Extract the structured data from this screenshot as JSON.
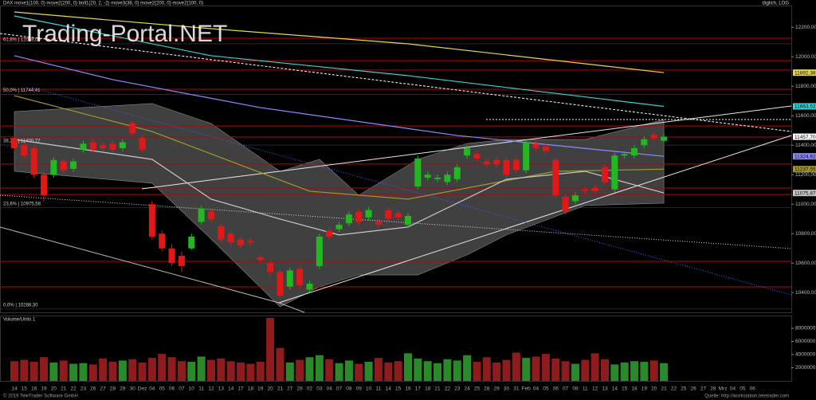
{
  "chart_data": {
    "type": "candlestick",
    "watermark": "Trading-Portal.NET",
    "header": "DAX  move1(100, 0)  move2(200, 0)  boll1(20, 2, -2)  move3(38, 0)  move2(200, 0)  move2(100, 0)",
    "period_label": "täglich, LOG",
    "categories": [
      "14",
      "15",
      "16",
      "19",
      "20",
      "21",
      "22",
      "23",
      "26",
      "27",
      "28",
      "29",
      "30",
      "Dez",
      "04",
      "05",
      "06",
      "07",
      "10",
      "11",
      "12",
      "13",
      "14",
      "17",
      "18",
      "19",
      "20",
      "21",
      "27",
      "28",
      "02",
      "03",
      "04",
      "07",
      "08",
      "09",
      "10",
      "11",
      "14",
      "15",
      "16",
      "17",
      "18",
      "21",
      "22",
      "23",
      "24",
      "25",
      "28",
      "29",
      "30",
      "31",
      "Feb",
      "04",
      "05",
      "06",
      "07",
      "08",
      "11",
      "12",
      "13",
      "14",
      "15",
      "18",
      "19",
      "20",
      "21",
      "22",
      "25",
      "26",
      "27",
      "28",
      "Mrz",
      "04",
      "05",
      "06"
    ],
    "open": [
      11450,
      11400,
      11380,
      11200,
      11200,
      11290,
      11240,
      11370,
      11420,
      11400,
      11410,
      11380,
      11550,
      11450,
      11000,
      10800,
      10700,
      10650,
      10700,
      10880,
      10950,
      10850,
      10800,
      10760,
      10750,
      10640,
      10600,
      10540,
      10440,
      10560,
      10420,
      10580,
      10820,
      10830,
      10870,
      10950,
      10910,
      10880,
      10960,
      10940,
      10860,
      11120,
      11180,
      11170,
      11150,
      11170,
      11330,
      11340,
      11290,
      11300,
      11300,
      11300,
      11230,
      11410,
      11390,
      11300,
      11050,
      11020,
      11100,
      11110,
      11250,
      11100,
      11330,
      11330,
      11400,
      11470,
      11430,
      null,
      null,
      null,
      null,
      null,
      null,
      null,
      null,
      null
    ],
    "high": [
      11470,
      11420,
      11400,
      11220,
      11320,
      11310,
      11310,
      11430,
      11440,
      11420,
      11430,
      11440,
      11570,
      11470,
      11020,
      10820,
      10730,
      10680,
      10800,
      10990,
      10970,
      10870,
      10820,
      10780,
      10770,
      10660,
      10620,
      10560,
      10570,
      10580,
      10480,
      10800,
      10840,
      10880,
      10950,
      10970,
      10980,
      10900,
      10980,
      10960,
      10940,
      11330,
      11220,
      11200,
      11220,
      11270,
      11400,
      11360,
      11310,
      11320,
      11320,
      11320,
      11440,
      11430,
      11410,
      11320,
      11070,
      11080,
      11120,
      11130,
      11270,
      11350,
      11360,
      11400,
      11460,
      11490,
      11480,
      null,
      null,
      null,
      null,
      null,
      null,
      null,
      null,
      null
    ],
    "low": [
      11360,
      11310,
      11180,
      11020,
      11180,
      11210,
      11220,
      11350,
      11350,
      11360,
      11350,
      11360,
      11460,
      11350,
      10760,
      10680,
      10580,
      10540,
      10690,
      10860,
      10880,
      10740,
      10710,
      10700,
      10720,
      10600,
      10510,
      10360,
      10420,
      10430,
      10400,
      10560,
      10760,
      10810,
      10850,
      10860,
      10890,
      10840,
      10880,
      10890,
      10840,
      11100,
      11160,
      11150,
      11130,
      11150,
      11310,
      11290,
      11250,
      11250,
      11180,
      11210,
      11210,
      11360,
      11340,
      11040,
      10930,
      11000,
      11070,
      11070,
      11130,
      11080,
      11310,
      11310,
      11380,
      11430,
      11420,
      null,
      null,
      null,
      null,
      null,
      null,
      null,
      null,
      null
    ],
    "close": [
      11380,
      11330,
      11200,
      11060,
      11300,
      11230,
      11290,
      11410,
      11370,
      11380,
      11370,
      11420,
      11480,
      11370,
      10780,
      10700,
      10600,
      10580,
      10780,
      10970,
      10900,
      10760,
      10740,
      10720,
      10740,
      10620,
      10540,
      10380,
      10550,
      10450,
      10460,
      10780,
      10780,
      10860,
      10930,
      10880,
      10960,
      10860,
      10900,
      10910,
      10920,
      11310,
      11200,
      11180,
      11200,
      11250,
      11380,
      11310,
      11270,
      11270,
      11200,
      11230,
      11420,
      11380,
      11360,
      11060,
      10950,
      11060,
      11090,
      11090,
      11150,
      11330,
      11340,
      11380,
      11440,
      11450,
      11457.7,
      null,
      null,
      null,
      null,
      null,
      null,
      null,
      null,
      null
    ],
    "up_color": "#22b822",
    "down_color": "#e01818",
    "ylim": [
      10266,
      12342
    ],
    "yticks": [
      {
        "value": 10400,
        "label": "10400,00"
      },
      {
        "value": 10600,
        "label": "10600,00"
      },
      {
        "value": 10800,
        "label": "10800,00"
      },
      {
        "value": 11000,
        "label": "11000,00"
      },
      {
        "value": 11200,
        "label": "11200,00"
      },
      {
        "value": 11400,
        "label": "11400,00"
      },
      {
        "value": 11600,
        "label": "11600,00"
      },
      {
        "value": 11800,
        "label": "11800,00"
      },
      {
        "value": 12000,
        "label": "12000,00"
      },
      {
        "value": 12200,
        "label": "12200,00"
      }
    ],
    "hlines": {
      "color": "#c00000",
      "values": [
        12126,
        11974,
        11910,
        11780,
        11531,
        11456,
        11272,
        11110,
        11066,
        10612,
        10439
      ]
    },
    "fib_levels": [
      {
        "value": 12088.05,
        "label": "61,8% | 12088,05"
      },
      {
        "value": 11744.41,
        "label": "50,0% | 11744,41"
      },
      {
        "value": 11400.77,
        "label": "38,2% | 11400,77"
      },
      {
        "value": 10975.58,
        "label": "23,6% | 10975,58"
      },
      {
        "value": 10288.3,
        "label": "0,0% | 10288,30"
      }
    ],
    "overlays": [
      {
        "color": "#e6d84a",
        "x": [
          0,
          19,
          40,
          66
        ],
        "values": [
          12304,
          12196,
          12088,
          11892.38
        ]
      },
      {
        "color": "#3fd2d2",
        "x": [
          0,
          20,
          40,
          66
        ],
        "values": [
          12277,
          12007,
          11872,
          11663.52
        ]
      },
      {
        "color": "#8c8cff",
        "x": [
          0,
          10,
          25,
          45,
          66
        ],
        "values": [
          12007,
          11845,
          11655,
          11466,
          11324.62
        ]
      },
      {
        "color": "#a89a2a",
        "x": [
          0,
          14,
          30,
          40,
          55,
          66
        ],
        "values": [
          11736,
          11493,
          11088,
          11034,
          11223,
          11237.55
        ]
      },
      {
        "color": "#c8c8c8",
        "x": [
          0,
          14,
          20,
          27,
          33,
          40,
          50,
          58,
          66
        ],
        "values": [
          11439,
          11304,
          11034,
          10899,
          10791,
          10845,
          11169,
          11223,
          11075.87
        ]
      }
    ],
    "bollinger": {
      "color": "#555555",
      "x": [
        0,
        14,
        20,
        27,
        31,
        35,
        41,
        46,
        50,
        58,
        66
      ],
      "upper": [
        11628,
        11683,
        11547,
        11223,
        11304,
        11061,
        11304,
        11412,
        11439,
        11439,
        11574
      ],
      "lower": [
        11223,
        11142,
        10764,
        10304,
        10439,
        10520,
        10520,
        10656,
        10791,
        10991,
        11007
      ]
    },
    "price_tags": [
      {
        "value": 11892.38,
        "label": "11892,38",
        "color": "#e6d84a"
      },
      {
        "value": 11663.52,
        "label": "11663,52",
        "color": "#3fd2d2"
      },
      {
        "value": 11457.7,
        "label": "11457,70",
        "color": "#ffffff"
      },
      {
        "value": 11324.62,
        "label": "11324,62",
        "color": "#8c8cff"
      },
      {
        "value": 11237.55,
        "label": "11237,55",
        "color": "#a89a2a"
      },
      {
        "value": 11075.87,
        "label": "11075,87",
        "color": "#c8c8c8"
      }
    ],
    "volume": {
      "label": "Volume/Units 1",
      "up_color": "#2a8a2a",
      "down_color": "#8e1c1c",
      "values": [
        3000000,
        3200000,
        2900000,
        3600000,
        2800000,
        3100000,
        2600000,
        2700000,
        2500000,
        3400000,
        2900000,
        3100000,
        3300000,
        2800000,
        3500000,
        4100000,
        3600000,
        3000000,
        2900000,
        3700000,
        3200000,
        3400000,
        3000000,
        2800000,
        2600000,
        2900000,
        9600000,
        5000000,
        2800000,
        3200000,
        3600000,
        3900000,
        3300000,
        2700000,
        3100000,
        2600000,
        2900000,
        3500000,
        2800000,
        3000000,
        4200000,
        3400000,
        3000000,
        2700000,
        3300000,
        3100000,
        3900000,
        2900000,
        3600000,
        2800000,
        3200000,
        4300000,
        3500000,
        3700000,
        4100000,
        3400000,
        3000000,
        2600000,
        3200000,
        4200000,
        3300000,
        2500000,
        2800000,
        3000000,
        2900000,
        3100000,
        2700000,
        null,
        null,
        null,
        null,
        null,
        null,
        null,
        null,
        null
      ],
      "ylim": [
        0,
        9700000
      ],
      "yticks": [
        2000000,
        4000000,
        6000000,
        8000000
      ]
    },
    "footer_left": "© 2019 TeleTrader Software GmbH",
    "footer_right": "Quelle: http://workstation.teletrader.com"
  }
}
